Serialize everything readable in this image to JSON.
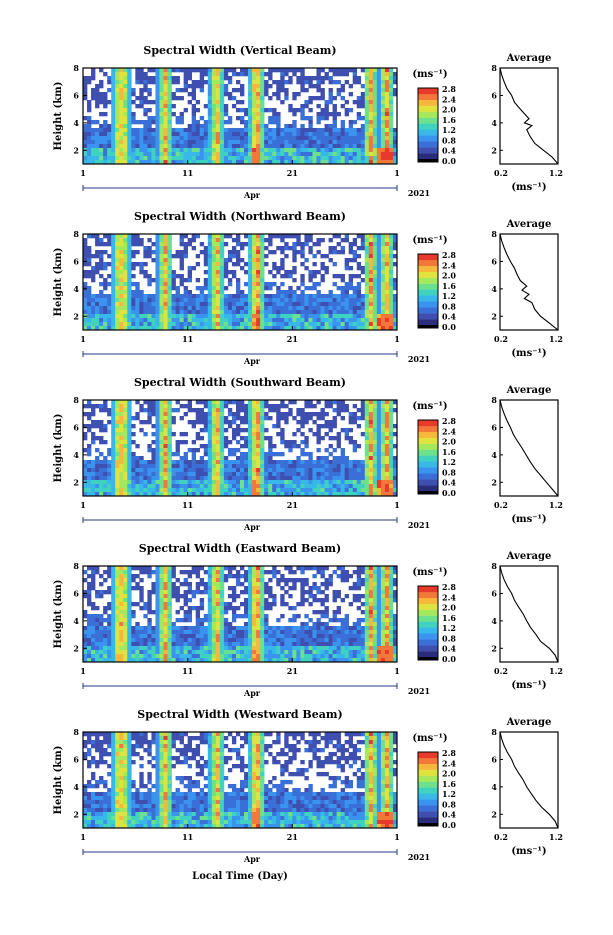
{
  "figure": {
    "xlabel": "Local Time (Day)"
  },
  "panel_common": {
    "ylabel": "Height (km)",
    "month_label": "Apr",
    "year_label": "2021",
    "x_ticks": [
      "1",
      "11",
      "21",
      "1"
    ],
    "y_ticks": [
      "2",
      "4",
      "6",
      "8"
    ],
    "colorbar_unit": "(ms⁻¹)",
    "colorbar_ticks": [
      "0.0",
      "0.4",
      "0.8",
      "1.2",
      "1.6",
      "2.0",
      "2.4",
      "2.8"
    ],
    "avg_title": "Average",
    "avg_xlabel": "(ms⁻¹)",
    "avg_x_ticks": [
      "0.2",
      "1.2"
    ],
    "avg_y_ticks": [
      "2",
      "4",
      "6",
      "8"
    ]
  },
  "colors": {
    "scale": [
      "#2b2d7c",
      "#3f4fb0",
      "#3a6fd8",
      "#3a93ef",
      "#37b8e8",
      "#3fd2c0",
      "#6ce08c",
      "#a6e85c",
      "#e0e240",
      "#f6b83a",
      "#f2783a",
      "#e83a2a"
    ],
    "lowest": "#000000"
  },
  "chart_data": [
    {
      "type": "heatmap",
      "title": "Spectral Width (Vertical Beam)",
      "xlim_days": [
        1,
        31
      ],
      "ylim_km": [
        1.0,
        8.0
      ],
      "clim": [
        0.0,
        2.8
      ],
      "average_profile": {
        "xlim": [
          0.2,
          1.2
        ],
        "height_km": [
          1.0,
          1.5,
          2.0,
          2.5,
          3.0,
          3.5,
          3.8,
          4.0,
          4.3,
          5.0,
          5.5,
          6.0,
          6.5,
          7.0,
          7.5,
          8.0
        ],
        "value_ms": [
          1.2,
          1.1,
          0.95,
          0.8,
          0.72,
          0.66,
          0.75,
          0.62,
          0.7,
          0.55,
          0.45,
          0.4,
          0.32,
          0.27,
          0.23,
          0.2
        ]
      }
    },
    {
      "type": "heatmap",
      "title": "Spectral Width (Northward Beam)",
      "xlim_days": [
        1,
        31
      ],
      "ylim_km": [
        1.0,
        8.0
      ],
      "clim": [
        0.0,
        2.8
      ],
      "average_profile": {
        "xlim": [
          0.2,
          1.2
        ],
        "height_km": [
          1.0,
          1.5,
          2.0,
          2.5,
          3.0,
          3.3,
          3.6,
          3.9,
          4.2,
          4.6,
          5.0,
          5.5,
          6.0,
          6.5,
          7.0,
          7.5,
          8.0
        ],
        "value_ms": [
          1.2,
          1.05,
          0.9,
          0.8,
          0.75,
          0.62,
          0.7,
          0.58,
          0.66,
          0.55,
          0.5,
          0.45,
          0.38,
          0.32,
          0.27,
          0.23,
          0.2
        ]
      }
    },
    {
      "type": "heatmap",
      "title": "Spectral Width (Southward Beam)",
      "xlim_days": [
        1,
        31
      ],
      "ylim_km": [
        1.0,
        8.0
      ],
      "clim": [
        0.0,
        2.8
      ],
      "average_profile": {
        "xlim": [
          0.2,
          1.2
        ],
        "height_km": [
          1.0,
          1.5,
          2.0,
          2.5,
          3.0,
          3.5,
          4.0,
          4.5,
          5.0,
          5.5,
          6.0,
          6.5,
          7.0,
          7.5,
          8.0
        ],
        "value_ms": [
          1.2,
          1.1,
          1.0,
          0.9,
          0.8,
          0.72,
          0.65,
          0.58,
          0.5,
          0.43,
          0.38,
          0.32,
          0.27,
          0.23,
          0.2
        ]
      }
    },
    {
      "type": "heatmap",
      "title": "Spectral Width (Eastward Beam)",
      "xlim_days": [
        1,
        31
      ],
      "ylim_km": [
        1.0,
        8.0
      ],
      "clim": [
        0.0,
        2.8
      ],
      "average_profile": {
        "xlim": [
          0.2,
          1.2
        ],
        "height_km": [
          1.0,
          1.5,
          2.0,
          2.5,
          3.0,
          3.5,
          4.0,
          4.5,
          5.0,
          5.5,
          6.0,
          6.5,
          7.0,
          7.5,
          8.0
        ],
        "value_ms": [
          1.2,
          1.15,
          1.05,
          0.9,
          0.82,
          0.73,
          0.66,
          0.6,
          0.52,
          0.45,
          0.4,
          0.33,
          0.27,
          0.23,
          0.2
        ]
      }
    },
    {
      "type": "heatmap",
      "title": "Spectral Width (Westward Beam)",
      "xlim_days": [
        1,
        31
      ],
      "ylim_km": [
        1.0,
        8.0
      ],
      "clim": [
        0.0,
        2.8
      ],
      "average_profile": {
        "xlim": [
          0.2,
          1.2
        ],
        "height_km": [
          1.0,
          1.5,
          2.0,
          2.5,
          3.0,
          3.5,
          4.0,
          4.5,
          5.0,
          5.5,
          6.0,
          6.5,
          7.0,
          7.5,
          8.0
        ],
        "value_ms": [
          1.2,
          1.15,
          1.05,
          0.92,
          0.82,
          0.74,
          0.66,
          0.6,
          0.52,
          0.45,
          0.4,
          0.33,
          0.27,
          0.23,
          0.2
        ]
      }
    }
  ]
}
